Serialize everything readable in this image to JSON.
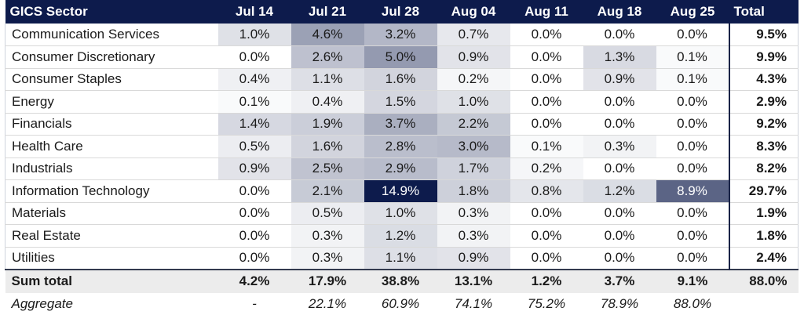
{
  "chart_data": {
    "type": "heatmap",
    "corner_label": "GICS Sector",
    "columns": [
      "Jul 14",
      "Jul 21",
      "Jul 28",
      "Aug 04",
      "Aug 11",
      "Aug 18",
      "Aug 25"
    ],
    "total_label": "Total",
    "rows": [
      {
        "sector": "Communication Services",
        "values": [
          "1.0%",
          "4.6%",
          "3.2%",
          "0.7%",
          "0.0%",
          "0.0%",
          "0.0%"
        ],
        "total": "9.5%"
      },
      {
        "sector": "Consumer Discretionary",
        "values": [
          "0.0%",
          "2.6%",
          "5.0%",
          "0.9%",
          "0.0%",
          "1.3%",
          "0.1%"
        ],
        "total": "9.9%"
      },
      {
        "sector": "Consumer Staples",
        "values": [
          "0.4%",
          "1.1%",
          "1.6%",
          "0.2%",
          "0.0%",
          "0.9%",
          "0.1%"
        ],
        "total": "4.3%"
      },
      {
        "sector": "Energy",
        "values": [
          "0.1%",
          "0.4%",
          "1.5%",
          "1.0%",
          "0.0%",
          "0.0%",
          "0.0%"
        ],
        "total": "2.9%"
      },
      {
        "sector": "Financials",
        "values": [
          "1.4%",
          "1.9%",
          "3.7%",
          "2.2%",
          "0.0%",
          "0.0%",
          "0.0%"
        ],
        "total": "9.2%"
      },
      {
        "sector": "Health Care",
        "values": [
          "0.5%",
          "1.6%",
          "2.8%",
          "3.0%",
          "0.1%",
          "0.3%",
          "0.0%"
        ],
        "total": "8.3%"
      },
      {
        "sector": "Industrials",
        "values": [
          "0.9%",
          "2.5%",
          "2.9%",
          "1.7%",
          "0.2%",
          "0.0%",
          "0.0%"
        ],
        "total": "8.2%"
      },
      {
        "sector": "Information Technology",
        "values": [
          "0.0%",
          "2.1%",
          "14.9%",
          "1.8%",
          "0.8%",
          "1.2%",
          "8.9%"
        ],
        "total": "29.7%"
      },
      {
        "sector": "Materials",
        "values": [
          "0.0%",
          "0.5%",
          "1.0%",
          "0.3%",
          "0.0%",
          "0.0%",
          "0.0%"
        ],
        "total": "1.9%"
      },
      {
        "sector": "Real Estate",
        "values": [
          "0.0%",
          "0.3%",
          "1.2%",
          "0.3%",
          "0.0%",
          "0.0%",
          "0.0%"
        ],
        "total": "1.8%"
      },
      {
        "sector": "Utilities",
        "values": [
          "0.0%",
          "0.3%",
          "1.1%",
          "0.9%",
          "0.0%",
          "0.0%",
          "0.0%"
        ],
        "total": "2.4%"
      }
    ],
    "sum_total": {
      "label": "Sum total",
      "values": [
        "4.2%",
        "17.9%",
        "38.8%",
        "13.1%",
        "1.2%",
        "3.7%",
        "9.1%"
      ],
      "total": "88.0%"
    },
    "aggregate": {
      "label": "Aggregate",
      "values": [
        "-",
        "22.1%",
        "60.9%",
        "74.1%",
        "75.2%",
        "78.9%",
        "88.0%"
      ]
    },
    "color_scale": {
      "low": "#ffffff",
      "high": "#0d1b4c",
      "max_value": 14.9
    }
  }
}
